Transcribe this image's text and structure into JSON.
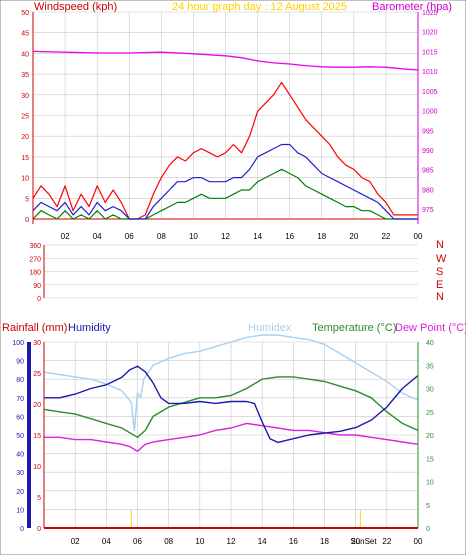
{
  "colors": {
    "wind": "#ff0000",
    "wind_avg": "#2020cc",
    "wind_low": "#008000",
    "baro": "#ee00ee",
    "rain": "#cc0000",
    "humidity": "#1a1aaa",
    "humidex": "#a8d0f0",
    "temperature": "#2e8b2e",
    "dewpoint": "#dd22dd",
    "grid": "#c8c8c8",
    "dir_axis": "#cc0000",
    "sun": "#ffd000"
  },
  "chart_data": [
    {
      "type": "line",
      "name": "wind-baro",
      "title": "24 hour graph day : 12 August 2025",
      "left_label": "Windspeed (kph)",
      "right_label": "Barometer (hpa)",
      "x_ticks": [
        "02",
        "04",
        "06",
        "08",
        "10",
        "12",
        "14",
        "16",
        "18",
        "20",
        "22",
        "00"
      ],
      "left_ticks": [
        0,
        5,
        10,
        15,
        20,
        25,
        30,
        35,
        40,
        45,
        50
      ],
      "right_ticks": [
        975,
        980,
        985,
        990,
        995,
        1000,
        1005,
        1010,
        1015,
        1020,
        1025
      ],
      "xlim": [
        0,
        24
      ],
      "ylim_left": [
        0,
        50
      ],
      "ylim_right": [
        972.5,
        1025
      ],
      "grid": true,
      "series": [
        {
          "key": "gust",
          "axis": "left",
          "x": [
            0.0,
            0.5,
            1.0,
            1.5,
            2.0,
            2.5,
            3.0,
            3.5,
            4.0,
            4.5,
            5.0,
            5.5,
            6.0,
            6.5,
            7.0,
            7.5,
            8.0,
            8.5,
            9.0,
            9.5,
            10.0,
            10.5,
            11.0,
            11.5,
            12.0,
            12.5,
            13.0,
            13.5,
            14.0,
            14.5,
            15.0,
            15.5,
            16.0,
            16.5,
            17.0,
            17.5,
            18.0,
            18.5,
            19.0,
            19.5,
            20.0,
            20.5,
            21.0,
            21.5,
            22.0,
            22.5,
            23.0,
            23.5,
            24.0
          ],
          "values": [
            5,
            8,
            6,
            3,
            8,
            2,
            6,
            3,
            8,
            4,
            7,
            4,
            0,
            0,
            1,
            6,
            10,
            13,
            15,
            14,
            16,
            17,
            16,
            15,
            16,
            18,
            16,
            20,
            26,
            28,
            30,
            33,
            30,
            27,
            24,
            22,
            20,
            18,
            15,
            13,
            12,
            10,
            9,
            6,
            4,
            1,
            1,
            1,
            1
          ]
        },
        {
          "key": "avg",
          "axis": "left",
          "x": [
            0.0,
            0.5,
            1.0,
            1.5,
            2.0,
            2.5,
            3.0,
            3.5,
            4.0,
            4.5,
            5.0,
            5.5,
            6.0,
            6.5,
            7.0,
            7.5,
            8.0,
            8.5,
            9.0,
            9.5,
            10.0,
            10.5,
            11.0,
            11.5,
            12.0,
            12.5,
            13.0,
            13.5,
            14.0,
            14.5,
            15.0,
            15.5,
            16.0,
            16.5,
            17.0,
            17.5,
            18.0,
            18.5,
            19.0,
            19.5,
            20.0,
            20.5,
            21.0,
            21.5,
            22.0,
            22.5,
            23.0,
            23.5,
            24.0
          ],
          "values": [
            2,
            4,
            3,
            2,
            4,
            1,
            3,
            1,
            4,
            2,
            3,
            2,
            0,
            0,
            0,
            3,
            5,
            7,
            9,
            9,
            10,
            10,
            9,
            9,
            9,
            10,
            10,
            12,
            15,
            16,
            17,
            18,
            18,
            16,
            15,
            13,
            11,
            10,
            9,
            8,
            7,
            6,
            5,
            4,
            2,
            0,
            0,
            0,
            0
          ]
        },
        {
          "key": "low",
          "axis": "left",
          "x": [
            0.0,
            0.5,
            1.0,
            1.5,
            2.0,
            2.5,
            3.0,
            3.5,
            4.0,
            4.5,
            5.0,
            5.5,
            6.0,
            6.5,
            7.0,
            7.5,
            8.0,
            8.5,
            9.0,
            9.5,
            10.0,
            10.5,
            11.0,
            11.5,
            12.0,
            12.5,
            13.0,
            13.5,
            14.0,
            14.5,
            15.0,
            15.5,
            16.0,
            16.5,
            17.0,
            17.5,
            18.0,
            18.5,
            19.0,
            19.5,
            20.0,
            20.5,
            21.0,
            21.5,
            22.0,
            22.5,
            23.0,
            23.5,
            24.0
          ],
          "values": [
            0,
            2,
            1,
            0,
            2,
            0,
            1,
            0,
            2,
            0,
            1,
            0,
            0,
            0,
            0,
            1,
            2,
            3,
            4,
            4,
            5,
            6,
            5,
            5,
            5,
            6,
            7,
            7,
            9,
            10,
            11,
            12,
            11,
            10,
            8,
            7,
            6,
            5,
            4,
            3,
            3,
            2,
            2,
            1,
            0,
            0,
            0,
            0,
            0
          ]
        },
        {
          "key": "baro",
          "axis": "right",
          "x": [
            0,
            2,
            4,
            6,
            8,
            10,
            12,
            13,
            14,
            15,
            16,
            17,
            18,
            19,
            20,
            21,
            22,
            23,
            24
          ],
          "values": [
            1015.0,
            1014.8,
            1014.6,
            1014.6,
            1014.8,
            1014.4,
            1013.9,
            1013.4,
            1012.6,
            1012.1,
            1011.8,
            1011.4,
            1011.1,
            1011.0,
            1011.0,
            1011.1,
            1011.0,
            1010.6,
            1010.3
          ]
        }
      ]
    },
    {
      "type": "scatter",
      "name": "wind-direction",
      "left_ticks": [
        0,
        90,
        180,
        270,
        360
      ],
      "right_labels": [
        "N",
        "W",
        "S",
        "E",
        "N"
      ],
      "ylim": [
        0,
        360
      ],
      "xlim": [
        0,
        24
      ],
      "points": []
    },
    {
      "type": "line",
      "name": "rain-humidity-temp",
      "labels": {
        "rain": "Rainfall (mm)",
        "humidity": "Humidity",
        "humidex": "Humidex",
        "temperature": "Temperature (°C)",
        "dewpoint": "Dew Point (°C)"
      },
      "x_ticks": [
        "02",
        "04",
        "06",
        "08",
        "10",
        "12",
        "14",
        "16",
        "18",
        "20",
        "22",
        "00"
      ],
      "humidity_ticks": [
        0,
        10,
        20,
        30,
        40,
        50,
        60,
        70,
        80,
        90,
        100
      ],
      "rain_ticks": [
        0,
        5,
        10,
        15,
        20,
        25,
        30
      ],
      "temp_ticks": [
        0,
        5,
        10,
        15,
        20,
        25,
        30,
        35,
        40
      ],
      "xlim": [
        0,
        24
      ],
      "ylim_humidity": [
        0,
        100
      ],
      "ylim_rain": [
        0,
        30
      ],
      "ylim_temp": [
        0,
        40
      ],
      "sun_marks": {
        "sunrise_hour": 5.6,
        "sunset_hour": 20.3,
        "sunset_label": "SunSet"
      },
      "series": [
        {
          "key": "rain",
          "axis": "rain",
          "x": [
            0,
            24
          ],
          "values": [
            0,
            0
          ]
        },
        {
          "key": "humidity",
          "axis": "humidity",
          "x": [
            0,
            1,
            2,
            3,
            4,
            5,
            5.5,
            6,
            6.5,
            7,
            7.5,
            8,
            9,
            10,
            11,
            12,
            13,
            13.5,
            14,
            14.5,
            15,
            16,
            17,
            18,
            19,
            20,
            21,
            22,
            23,
            24
          ],
          "values": [
            70,
            70,
            72,
            75,
            77,
            81,
            85,
            87,
            84,
            78,
            70,
            67,
            67,
            68,
            67,
            68,
            68,
            67,
            57,
            48,
            46,
            48,
            50,
            51,
            52,
            54,
            58,
            65,
            75,
            82
          ]
        },
        {
          "key": "humidex",
          "axis": "temp",
          "x": [
            0,
            1,
            2,
            3,
            4,
            5,
            5.6,
            5.8,
            6.0,
            6.2,
            6.4,
            7,
            8,
            9,
            10,
            11,
            12,
            13,
            14,
            15,
            16,
            17,
            18,
            19,
            20,
            21,
            22,
            23,
            24
          ],
          "values": [
            33.5,
            33,
            32.5,
            32,
            31,
            29.5,
            27,
            21,
            29,
            28,
            32,
            35,
            36.5,
            37.5,
            38,
            39,
            40,
            41,
            41.5,
            41.5,
            41,
            40.5,
            39.5,
            37.5,
            35.5,
            33.5,
            31.5,
            29,
            27.5
          ]
        },
        {
          "key": "temperature",
          "axis": "temp",
          "x": [
            0,
            1,
            2,
            3,
            4,
            5,
            5.5,
            6,
            6.5,
            7,
            8,
            9,
            10,
            11,
            12,
            13,
            14,
            15,
            16,
            17,
            18,
            19,
            20,
            21,
            22,
            23,
            24
          ],
          "values": [
            25.5,
            25,
            24.5,
            23.5,
            22.5,
            21.5,
            20.5,
            19.5,
            21,
            24,
            26,
            27,
            28,
            28,
            28.5,
            30,
            32,
            32.5,
            32.5,
            32,
            31.5,
            30.5,
            29.5,
            28,
            25,
            22.5,
            21
          ]
        },
        {
          "key": "dewpoint",
          "axis": "temp",
          "x": [
            0,
            1,
            2,
            3,
            4,
            5,
            5.5,
            6,
            6.5,
            7,
            8,
            9,
            10,
            11,
            12,
            13,
            14,
            15,
            16,
            17,
            18,
            19,
            20,
            21,
            22,
            23,
            24
          ],
          "values": [
            19.5,
            19.5,
            19,
            19,
            18.5,
            18,
            17.5,
            16.5,
            18,
            18.5,
            19,
            19.5,
            20,
            21,
            21.5,
            22.5,
            22,
            21.5,
            21,
            21,
            20.5,
            20,
            20,
            19.5,
            19,
            18.5,
            18
          ]
        }
      ]
    }
  ]
}
